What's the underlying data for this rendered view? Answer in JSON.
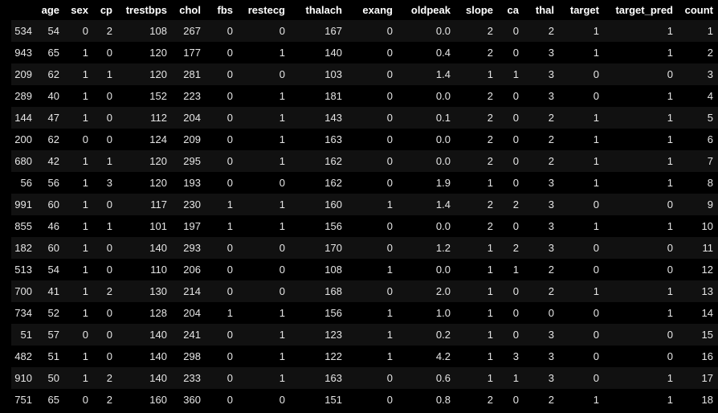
{
  "table": {
    "index_header": "",
    "columns": [
      "age",
      "sex",
      "cp",
      "trestbps",
      "chol",
      "fbs",
      "restecg",
      "thalach",
      "exang",
      "oldpeak",
      "slope",
      "ca",
      "thal",
      "target",
      "target_pred",
      "count"
    ],
    "rows": [
      {
        "index": "534",
        "values": [
          "54",
          "0",
          "2",
          "108",
          "267",
          "0",
          "0",
          "167",
          "0",
          "0.0",
          "2",
          "0",
          "2",
          "1",
          "1",
          "1"
        ]
      },
      {
        "index": "943",
        "values": [
          "65",
          "1",
          "0",
          "120",
          "177",
          "0",
          "1",
          "140",
          "0",
          "0.4",
          "2",
          "0",
          "3",
          "1",
          "1",
          "2"
        ]
      },
      {
        "index": "209",
        "values": [
          "62",
          "1",
          "1",
          "120",
          "281",
          "0",
          "0",
          "103",
          "0",
          "1.4",
          "1",
          "1",
          "3",
          "0",
          "0",
          "3"
        ]
      },
      {
        "index": "289",
        "values": [
          "40",
          "1",
          "0",
          "152",
          "223",
          "0",
          "1",
          "181",
          "0",
          "0.0",
          "2",
          "0",
          "3",
          "0",
          "1",
          "4"
        ]
      },
      {
        "index": "144",
        "values": [
          "47",
          "1",
          "0",
          "112",
          "204",
          "0",
          "1",
          "143",
          "0",
          "0.1",
          "2",
          "0",
          "2",
          "1",
          "1",
          "5"
        ]
      },
      {
        "index": "200",
        "values": [
          "62",
          "0",
          "0",
          "124",
          "209",
          "0",
          "1",
          "163",
          "0",
          "0.0",
          "2",
          "0",
          "2",
          "1",
          "1",
          "6"
        ]
      },
      {
        "index": "680",
        "values": [
          "42",
          "1",
          "1",
          "120",
          "295",
          "0",
          "1",
          "162",
          "0",
          "0.0",
          "2",
          "0",
          "2",
          "1",
          "1",
          "7"
        ]
      },
      {
        "index": "56",
        "values": [
          "56",
          "1",
          "3",
          "120",
          "193",
          "0",
          "0",
          "162",
          "0",
          "1.9",
          "1",
          "0",
          "3",
          "1",
          "1",
          "8"
        ]
      },
      {
        "index": "991",
        "values": [
          "60",
          "1",
          "0",
          "117",
          "230",
          "1",
          "1",
          "160",
          "1",
          "1.4",
          "2",
          "2",
          "3",
          "0",
          "0",
          "9"
        ]
      },
      {
        "index": "855",
        "values": [
          "46",
          "1",
          "1",
          "101",
          "197",
          "1",
          "1",
          "156",
          "0",
          "0.0",
          "2",
          "0",
          "3",
          "1",
          "1",
          "10"
        ]
      },
      {
        "index": "182",
        "values": [
          "60",
          "1",
          "0",
          "140",
          "293",
          "0",
          "0",
          "170",
          "0",
          "1.2",
          "1",
          "2",
          "3",
          "0",
          "0",
          "11"
        ]
      },
      {
        "index": "513",
        "values": [
          "54",
          "1",
          "0",
          "110",
          "206",
          "0",
          "0",
          "108",
          "1",
          "0.0",
          "1",
          "1",
          "2",
          "0",
          "0",
          "12"
        ]
      },
      {
        "index": "700",
        "values": [
          "41",
          "1",
          "2",
          "130",
          "214",
          "0",
          "0",
          "168",
          "0",
          "2.0",
          "1",
          "0",
          "2",
          "1",
          "1",
          "13"
        ]
      },
      {
        "index": "734",
        "values": [
          "52",
          "1",
          "0",
          "128",
          "204",
          "1",
          "1",
          "156",
          "1",
          "1.0",
          "1",
          "0",
          "0",
          "0",
          "1",
          "14"
        ]
      },
      {
        "index": "51",
        "values": [
          "57",
          "0",
          "0",
          "140",
          "241",
          "0",
          "1",
          "123",
          "1",
          "0.2",
          "1",
          "0",
          "3",
          "0",
          "0",
          "15"
        ]
      },
      {
        "index": "482",
        "values": [
          "51",
          "1",
          "0",
          "140",
          "298",
          "0",
          "1",
          "122",
          "1",
          "4.2",
          "1",
          "3",
          "3",
          "0",
          "0",
          "16"
        ]
      },
      {
        "index": "910",
        "values": [
          "50",
          "1",
          "2",
          "140",
          "233",
          "0",
          "1",
          "163",
          "0",
          "0.6",
          "1",
          "1",
          "3",
          "0",
          "1",
          "17"
        ]
      },
      {
        "index": "751",
        "values": [
          "65",
          "0",
          "2",
          "160",
          "360",
          "0",
          "0",
          "151",
          "0",
          "0.8",
          "2",
          "0",
          "2",
          "1",
          "1",
          "18"
        ]
      }
    ]
  },
  "colors": {
    "background": "#000000",
    "row_stripe": "#111111",
    "text": "#e6e6e6",
    "header_text": "#ffffff"
  }
}
